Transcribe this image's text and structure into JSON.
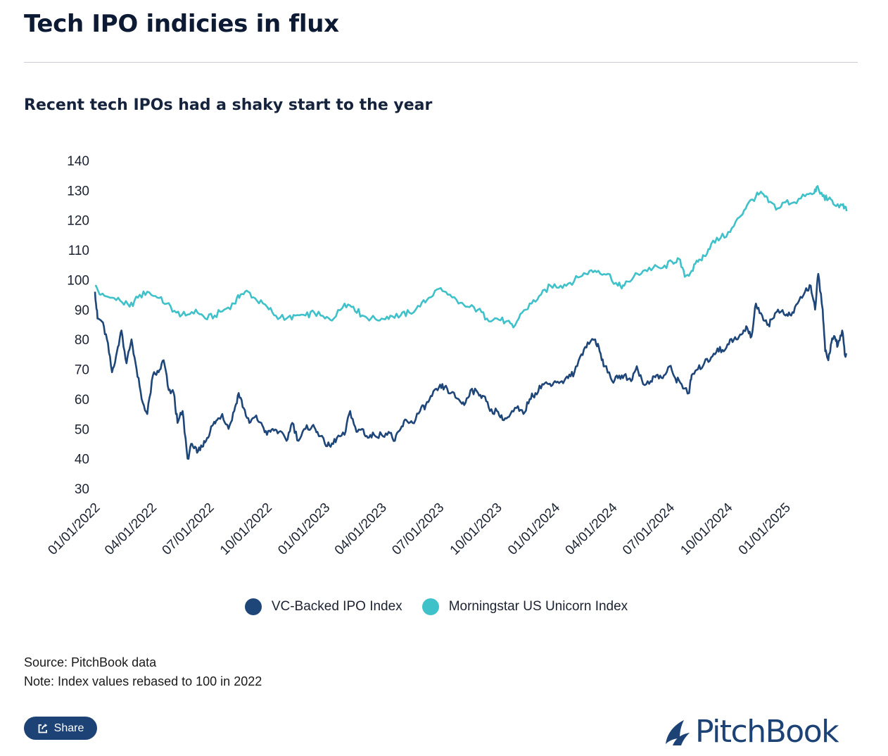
{
  "title": "Tech IPO indicies in flux",
  "subtitle": "Recent tech IPOs had a shaky start to the year",
  "legend": [
    {
      "name": "VC-Backed IPO Index",
      "color": "#1f4679"
    },
    {
      "name": "Morningstar US Unicorn Index",
      "color": "#3fc1c9"
    }
  ],
  "source": "Source: PitchBook data",
  "note": "Note: Index values rebased to 100 in 2022",
  "share_label": "Share",
  "logo_text": "PitchBook",
  "chart_data": {
    "type": "line",
    "ylim": [
      30,
      140
    ],
    "yticks": [
      140,
      130,
      120,
      110,
      100,
      90,
      80,
      70,
      60,
      50,
      40,
      30
    ],
    "xlim": [
      "2022-01-01",
      "2025-04-10"
    ],
    "xticks": [
      "01/01/2022",
      "04/01/2022",
      "07/01/2022",
      "10/01/2022",
      "01/01/2023",
      "04/01/2023",
      "07/01/2023",
      "10/01/2023",
      "01/01/2024",
      "04/01/2024",
      "07/01/2024",
      "10/01/2024",
      "01/01/2025"
    ],
    "series": [
      {
        "name": "VC-Backed IPO Index",
        "color": "#1f4679",
        "x": [
          "2022-01-01",
          "2022-01-05",
          "2022-01-12",
          "2022-01-20",
          "2022-01-28",
          "2022-02-05",
          "2022-02-12",
          "2022-02-20",
          "2022-02-28",
          "2022-03-08",
          "2022-03-16",
          "2022-03-25",
          "2022-04-03",
          "2022-04-12",
          "2022-04-20",
          "2022-04-28",
          "2022-05-06",
          "2022-05-12",
          "2022-05-20",
          "2022-05-28",
          "2022-06-04",
          "2022-06-12",
          "2022-06-20",
          "2022-06-28",
          "2022-07-06",
          "2022-07-14",
          "2022-07-22",
          "2022-08-01",
          "2022-08-10",
          "2022-08-17",
          "2022-08-25",
          "2022-09-03",
          "2022-09-12",
          "2022-09-22",
          "2022-10-01",
          "2022-10-10",
          "2022-10-20",
          "2022-11-01",
          "2022-11-10",
          "2022-11-20",
          "2022-12-01",
          "2022-12-12",
          "2022-12-20",
          "2023-01-01",
          "2023-01-10",
          "2023-01-20",
          "2023-02-01",
          "2023-02-10",
          "2023-02-20",
          "2023-03-01",
          "2023-03-10",
          "2023-03-20",
          "2023-04-01",
          "2023-04-12",
          "2023-04-22",
          "2023-05-01",
          "2023-05-10",
          "2023-05-20",
          "2023-06-01",
          "2023-06-10",
          "2023-06-20",
          "2023-07-01",
          "2023-07-10",
          "2023-07-20",
          "2023-08-01",
          "2023-08-10",
          "2023-08-20",
          "2023-09-01",
          "2023-09-10",
          "2023-09-20",
          "2023-10-01",
          "2023-10-10",
          "2023-10-20",
          "2023-11-01",
          "2023-11-12",
          "2023-11-22",
          "2023-12-01",
          "2023-12-12",
          "2023-12-22",
          "2024-01-01",
          "2024-01-12",
          "2024-01-22",
          "2024-02-01",
          "2024-02-12",
          "2024-02-22",
          "2024-03-05",
          "2024-03-12",
          "2024-03-20",
          "2024-04-01",
          "2024-04-10",
          "2024-04-20",
          "2024-05-01",
          "2024-05-10",
          "2024-05-20",
          "2024-06-01",
          "2024-06-10",
          "2024-06-20",
          "2024-07-01",
          "2024-07-10",
          "2024-07-20",
          "2024-08-01",
          "2024-08-05",
          "2024-08-15",
          "2024-08-25",
          "2024-09-05",
          "2024-09-15",
          "2024-09-25",
          "2024-10-05",
          "2024-10-15",
          "2024-10-25",
          "2024-11-01",
          "2024-11-08",
          "2024-11-15",
          "2024-11-25",
          "2024-12-05",
          "2024-12-12",
          "2024-12-20",
          "2025-01-01",
          "2025-01-10",
          "2025-01-20",
          "2025-02-01",
          "2025-02-10",
          "2025-02-17",
          "2025-02-22",
          "2025-03-01",
          "2025-03-05",
          "2025-03-10",
          "2025-03-15",
          "2025-03-20",
          "2025-03-25",
          "2025-04-01",
          "2025-04-05",
          "2025-04-08"
        ],
        "values": [
          96,
          87,
          86,
          80,
          69,
          76,
          83,
          72,
          80,
          70,
          60,
          55,
          68,
          69,
          73,
          63,
          62,
          52,
          56,
          40,
          45,
          42,
          44,
          47,
          51,
          53,
          55,
          50,
          56,
          62,
          57,
          52,
          54,
          52,
          48,
          50,
          49,
          46,
          52,
          46,
          50,
          51,
          49,
          45,
          44,
          47,
          48,
          56,
          49,
          50,
          47,
          48,
          48,
          49,
          46,
          50,
          53,
          52,
          56,
          58,
          61,
          64,
          64,
          62,
          60,
          58,
          63,
          62,
          61,
          56,
          56,
          53,
          54,
          57,
          55,
          60,
          62,
          65,
          65,
          66,
          66,
          67,
          69,
          75,
          79,
          80,
          76,
          71,
          66,
          67,
          68,
          66,
          71,
          65,
          66,
          68,
          67,
          71,
          67,
          65,
          62,
          68,
          70,
          72,
          74,
          77,
          76,
          80,
          80,
          82,
          84,
          81,
          92,
          88,
          85,
          87,
          90,
          88,
          88,
          92,
          96,
          98,
          90,
          102,
          90,
          76,
          73,
          79,
          81,
          78,
          83,
          75,
          75
        ]
      },
      {
        "name": "Morningstar US Unicorn Index",
        "color": "#3fc1c9",
        "x": [
          "2022-01-01",
          "2022-01-10",
          "2022-01-25",
          "2022-02-10",
          "2022-02-25",
          "2022-03-10",
          "2022-03-25",
          "2022-04-10",
          "2022-04-25",
          "2022-05-10",
          "2022-05-25",
          "2022-06-10",
          "2022-06-25",
          "2022-07-10",
          "2022-07-25",
          "2022-08-10",
          "2022-08-20",
          "2022-09-01",
          "2022-09-15",
          "2022-10-01",
          "2022-10-15",
          "2022-11-01",
          "2022-11-15",
          "2022-12-01",
          "2022-12-15",
          "2023-01-01",
          "2023-01-15",
          "2023-02-01",
          "2023-02-15",
          "2023-03-01",
          "2023-03-15",
          "2023-04-01",
          "2023-04-15",
          "2023-05-01",
          "2023-05-15",
          "2023-06-01",
          "2023-06-15",
          "2023-07-01",
          "2023-07-15",
          "2023-08-01",
          "2023-08-15",
          "2023-09-01",
          "2023-09-15",
          "2023-10-01",
          "2023-10-15",
          "2023-10-27",
          "2023-11-10",
          "2023-11-25",
          "2023-12-10",
          "2023-12-25",
          "2024-01-10",
          "2024-01-25",
          "2024-02-10",
          "2024-02-25",
          "2024-03-10",
          "2024-03-25",
          "2024-04-10",
          "2024-04-20",
          "2024-05-05",
          "2024-05-20",
          "2024-06-05",
          "2024-06-20",
          "2024-07-05",
          "2024-07-16",
          "2024-07-25",
          "2024-08-05",
          "2024-08-15",
          "2024-08-25",
          "2024-09-05",
          "2024-09-20",
          "2024-10-05",
          "2024-10-20",
          "2024-11-01",
          "2024-11-15",
          "2024-11-25",
          "2024-12-05",
          "2024-12-20",
          "2025-01-01",
          "2025-01-15",
          "2025-02-01",
          "2025-02-15",
          "2025-02-19",
          "2025-03-01",
          "2025-03-10",
          "2025-03-20",
          "2025-04-01",
          "2025-04-08"
        ],
        "values": [
          98,
          95,
          94,
          93,
          91,
          94,
          96,
          94,
          92,
          89,
          88,
          90,
          87,
          88,
          90,
          92,
          95,
          96,
          93,
          91,
          88,
          87,
          88,
          88,
          89,
          87,
          87,
          92,
          91,
          88,
          87,
          87,
          88,
          88,
          89,
          91,
          94,
          97,
          95,
          92,
          91,
          90,
          87,
          87,
          86,
          84,
          89,
          92,
          95,
          98,
          98,
          99,
          101,
          103,
          103,
          102,
          98,
          98,
          101,
          103,
          104,
          104,
          106,
          107,
          101,
          103,
          106,
          108,
          112,
          114,
          116,
          121,
          125,
          128,
          129,
          126,
          124,
          126,
          126,
          128,
          129,
          131,
          128,
          127,
          125,
          125,
          123
        ]
      }
    ]
  }
}
